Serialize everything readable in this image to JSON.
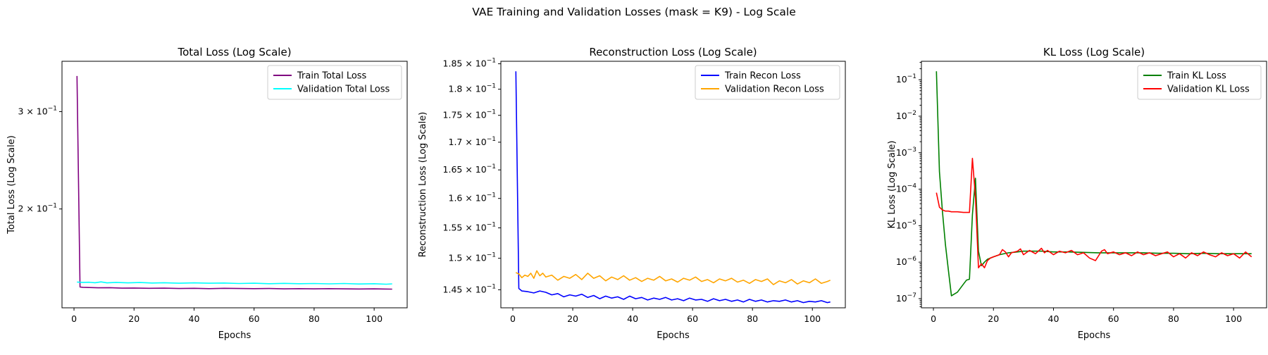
{
  "suptitle": "VAE Training and Validation Losses (mask = K9) - Log Scale",
  "chart_data": [
    {
      "type": "line",
      "title": "Total Loss (Log Scale)",
      "xlabel": "Epochs",
      "ylabel": "Total Loss (Log Scale)",
      "yscale": "log",
      "xlim": [
        -4,
        111
      ],
      "ylim": [
        0.1325,
        0.37
      ],
      "xticks": [
        0,
        20,
        40,
        60,
        80,
        100
      ],
      "xtick_labels": [
        "0",
        "20",
        "40",
        "60",
        "80",
        "100"
      ],
      "yticks": [
        0.2,
        0.3
      ],
      "ytick_labels": [
        "2 × 10",
        "3 × 10"
      ],
      "ytick_exps": [
        "−1",
        "−1"
      ],
      "legend_position": "upper right",
      "grid": false,
      "series": [
        {
          "name": "Train Total Loss",
          "color": "#800080",
          "x": [
            1,
            2,
            3,
            5,
            8,
            12,
            16,
            20,
            25,
            30,
            35,
            40,
            45,
            50,
            55,
            60,
            65,
            70,
            75,
            80,
            85,
            90,
            95,
            100,
            103,
            106
          ],
          "y": [
            0.348,
            0.1445,
            0.1443,
            0.1442,
            0.144,
            0.1441,
            0.1438,
            0.1439,
            0.1437,
            0.1438,
            0.1436,
            0.1437,
            0.1435,
            0.1437,
            0.1436,
            0.1435,
            0.1436,
            0.1434,
            0.1435,
            0.1434,
            0.1435,
            0.1434,
            0.1433,
            0.1434,
            0.1433,
            0.1432
          ]
        },
        {
          "name": "Validation Total Loss",
          "color": "#00ffff",
          "x": [
            1,
            3,
            5,
            7,
            9,
            11,
            14,
            18,
            22,
            26,
            30,
            35,
            40,
            45,
            50,
            55,
            60,
            65,
            70,
            75,
            80,
            85,
            90,
            95,
            100,
            104,
            106
          ],
          "y": [
            0.1475,
            0.1473,
            0.1474,
            0.1471,
            0.1476,
            0.147,
            0.1473,
            0.147,
            0.1472,
            0.1469,
            0.1471,
            0.1468,
            0.147,
            0.1468,
            0.1469,
            0.1466,
            0.1468,
            0.1465,
            0.1467,
            0.1465,
            0.1466,
            0.1464,
            0.1466,
            0.1463,
            0.1465,
            0.1462,
            0.1464
          ]
        }
      ]
    },
    {
      "type": "line",
      "title": "Reconstruction Loss (Log Scale)",
      "xlabel": "Epochs",
      "ylabel": "Reconstruction Loss (Log Scale)",
      "yscale": "log",
      "xlim": [
        -4,
        111
      ],
      "ylim": [
        0.1422,
        0.1855
      ],
      "xticks": [
        0,
        20,
        40,
        60,
        80,
        100
      ],
      "xtick_labels": [
        "0",
        "20",
        "40",
        "60",
        "80",
        "100"
      ],
      "yticks": [
        0.145,
        0.15,
        0.155,
        0.16,
        0.165,
        0.17,
        0.175,
        0.18,
        0.185
      ],
      "ytick_labels": [
        "1.45 × 10",
        "1.5 × 10",
        "1.55 × 10",
        "1.6 × 10",
        "1.65 × 10",
        "1.7 × 10",
        "1.75 × 10",
        "1.8 × 10",
        "1.85 × 10"
      ],
      "ytick_exps": [
        "−1",
        "−1",
        "−1",
        "−1",
        "−1",
        "−1",
        "−1",
        "−1",
        "−1"
      ],
      "legend_position": "upper right",
      "grid": false,
      "series": [
        {
          "name": "Train Recon Loss",
          "color": "#0000ff",
          "x": [
            1,
            2,
            3,
            5,
            7,
            9,
            11,
            13,
            15,
            17,
            19,
            21,
            23,
            25,
            27,
            29,
            31,
            33,
            35,
            37,
            39,
            41,
            43,
            45,
            47,
            49,
            51,
            53,
            55,
            57,
            59,
            61,
            63,
            65,
            67,
            69,
            71,
            73,
            75,
            77,
            79,
            81,
            83,
            85,
            87,
            89,
            91,
            93,
            95,
            97,
            99,
            101,
            103,
            105,
            106
          ],
          "y": [
            0.1835,
            0.1452,
            0.1448,
            0.1447,
            0.1445,
            0.1448,
            0.1446,
            0.1442,
            0.1444,
            0.1439,
            0.1442,
            0.144,
            0.1443,
            0.1438,
            0.1441,
            0.1436,
            0.144,
            0.1437,
            0.1439,
            0.1435,
            0.144,
            0.1436,
            0.1438,
            0.1434,
            0.1437,
            0.1435,
            0.1438,
            0.1434,
            0.1436,
            0.1433,
            0.1437,
            0.1434,
            0.1435,
            0.1432,
            0.1436,
            0.1433,
            0.1435,
            0.1432,
            0.1434,
            0.1431,
            0.1435,
            0.1432,
            0.1434,
            0.1431,
            0.1433,
            0.1432,
            0.1434,
            0.1431,
            0.1433,
            0.143,
            0.1432,
            0.1431,
            0.1433,
            0.143,
            0.1431
          ]
        },
        {
          "name": "Validation Recon Loss",
          "color": "#ffa500",
          "x": [
            1,
            2,
            3,
            4,
            5,
            6,
            7,
            8,
            9,
            10,
            11,
            13,
            15,
            17,
            19,
            21,
            23,
            25,
            27,
            29,
            31,
            33,
            35,
            37,
            39,
            41,
            43,
            45,
            47,
            49,
            51,
            53,
            55,
            57,
            59,
            61,
            63,
            65,
            67,
            69,
            71,
            73,
            75,
            77,
            79,
            81,
            83,
            85,
            87,
            89,
            91,
            93,
            95,
            97,
            99,
            101,
            103,
            105,
            106
          ],
          "y": [
            0.1477,
            0.1475,
            0.1469,
            0.1473,
            0.1471,
            0.1476,
            0.1468,
            0.148,
            0.1472,
            0.1476,
            0.147,
            0.1473,
            0.1465,
            0.1471,
            0.1468,
            0.1474,
            0.1466,
            0.1476,
            0.1468,
            0.1472,
            0.1464,
            0.147,
            0.1466,
            0.1472,
            0.1465,
            0.1469,
            0.1463,
            0.1468,
            0.1465,
            0.1471,
            0.1464,
            0.1467,
            0.1462,
            0.1468,
            0.1465,
            0.147,
            0.1463,
            0.1466,
            0.1461,
            0.1467,
            0.1464,
            0.1468,
            0.1462,
            0.1465,
            0.146,
            0.1466,
            0.1463,
            0.1467,
            0.1458,
            0.1464,
            0.1461,
            0.1466,
            0.1459,
            0.1464,
            0.1461,
            0.1467,
            0.146,
            0.1463,
            0.1465
          ]
        }
      ]
    },
    {
      "type": "line",
      "title": "KL Loss (Log Scale)",
      "xlabel": "Epochs",
      "ylabel": "KL Loss (Log Scale)",
      "yscale": "log",
      "xlim": [
        -4,
        111
      ],
      "ylim": [
        5.6e-08,
        0.32
      ],
      "xticks": [
        0,
        20,
        40,
        60,
        80,
        100
      ],
      "xtick_labels": [
        "0",
        "20",
        "40",
        "60",
        "80",
        "100"
      ],
      "yticks": [
        1e-07,
        1e-06,
        1e-05,
        0.0001,
        0.001,
        0.01,
        0.1
      ],
      "ytick_labels": [
        "10",
        "10",
        "10",
        "10",
        "10",
        "10",
        "10"
      ],
      "ytick_exps": [
        "−7",
        "−6",
        "−5",
        "−4",
        "−3",
        "−2",
        "−1"
      ],
      "legend_position": "upper right",
      "grid": false,
      "series": [
        {
          "name": "Train KL Loss",
          "color": "#008000",
          "x": [
            1,
            2,
            3,
            4,
            5,
            6,
            8,
            10,
            11,
            12,
            13,
            14,
            15,
            16,
            17,
            18,
            20,
            22,
            25,
            28,
            30,
            33,
            36,
            40,
            45,
            50,
            55,
            60,
            65,
            70,
            75,
            80,
            85,
            90,
            95,
            100,
            103,
            106
          ],
          "y": [
            0.17,
            0.0003,
            2.5e-05,
            3e-06,
            6e-07,
            1.2e-07,
            1.5e-07,
            2.5e-07,
            3.2e-07,
            3.4e-07,
            2e-05,
            0.0002,
            2e-06,
            8e-07,
            1e-06,
            1.2e-06,
            1.4e-06,
            1.6e-06,
            1.8e-06,
            1.9e-06,
            2e-06,
            2e-06,
            2e-06,
            1.9e-06,
            1.9e-06,
            1.85e-06,
            1.8e-06,
            1.8e-06,
            1.8e-06,
            1.8e-06,
            1.75e-06,
            1.75e-06,
            1.7e-06,
            1.75e-06,
            1.7e-06,
            1.7e-06,
            1.7e-06,
            1.7e-06
          ]
        },
        {
          "name": "Validation KL Loss",
          "color": "#ff0000",
          "x": [
            1,
            2,
            3,
            4,
            5,
            6,
            8,
            10,
            12,
            13,
            14,
            15,
            16,
            17,
            18,
            19,
            20,
            22,
            23,
            24,
            25,
            26,
            28,
            29,
            30,
            32,
            34,
            36,
            37,
            38,
            40,
            42,
            44,
            46,
            48,
            50,
            52,
            54,
            56,
            57,
            58,
            60,
            62,
            64,
            66,
            68,
            70,
            72,
            74,
            76,
            78,
            80,
            82,
            84,
            86,
            88,
            90,
            92,
            94,
            96,
            98,
            100,
            102,
            104,
            106
          ],
          "y": [
            8e-05,
            3.2e-05,
            2.7e-05,
            2.5e-05,
            2.5e-05,
            2.4e-05,
            2.4e-05,
            2.3e-05,
            2.3e-05,
            0.0007,
            6e-05,
            7e-07,
            9e-07,
            7e-07,
            1.1e-06,
            1.3e-06,
            1.4e-06,
            1.6e-06,
            2.2e-06,
            1.9e-06,
            1.4e-06,
            1.8e-06,
            2e-06,
            2.3e-06,
            1.6e-06,
            2.1e-06,
            1.7e-06,
            2.4e-06,
            1.8e-06,
            2.1e-06,
            1.6e-06,
            2e-06,
            1.8e-06,
            2.1e-06,
            1.6e-06,
            1.8e-06,
            1.3e-06,
            1.1e-06,
            2e-06,
            2.2e-06,
            1.7e-06,
            1.9e-06,
            1.6e-06,
            1.8e-06,
            1.5e-06,
            1.9e-06,
            1.6e-06,
            1.8e-06,
            1.5e-06,
            1.7e-06,
            1.9e-06,
            1.4e-06,
            1.7e-06,
            1.3e-06,
            1.8e-06,
            1.5e-06,
            1.9e-06,
            1.6e-06,
            1.4e-06,
            1.8e-06,
            1.5e-06,
            1.7e-06,
            1.3e-06,
            1.9e-06,
            1.4e-06
          ]
        }
      ]
    }
  ]
}
